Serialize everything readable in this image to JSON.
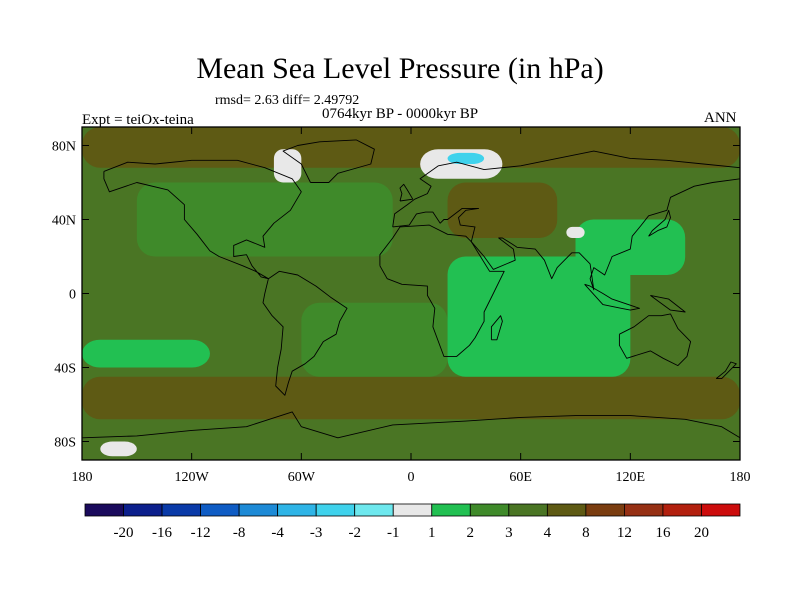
{
  "chart_data": {
    "type": "heatmap",
    "title": "Mean Sea Level Pressure (in hPa)",
    "stats_text": "rmsd= 2.63 diff= 2.49792",
    "period_text": "0764kyr BP - 0000kyr BP",
    "experiment_text": "Expt = teiOx-teina",
    "season": "ANN",
    "x_ticks": [
      "180",
      "120W",
      "60W",
      "0",
      "60E",
      "120E",
      "180"
    ],
    "x_tick_values": [
      -180,
      -120,
      -60,
      0,
      60,
      120,
      180
    ],
    "y_ticks": [
      "80N",
      "40N",
      "0",
      "40S",
      "80S"
    ],
    "y_tick_values": [
      80,
      40,
      0,
      -40,
      -80
    ],
    "xlim": [
      -180,
      180
    ],
    "ylim": [
      -90,
      90
    ],
    "colorbar_labels": [
      "-20",
      "-16",
      "-12",
      "-8",
      "-4",
      "-3",
      "-2",
      "-1",
      "1",
      "2",
      "3",
      "4",
      "8",
      "12",
      "16",
      "20"
    ],
    "colorbar_colors": [
      "#1a0a5c",
      "#0c1f8c",
      "#0a3aa8",
      "#0f5cc4",
      "#1d8ad6",
      "#2eb4e6",
      "#3fd2ec",
      "#6ee8ee",
      "#e8e8e8",
      "#22c052",
      "#3f8a2a",
      "#4a7524",
      "#5e5a14",
      "#7a3d10",
      "#963014",
      "#b2200e",
      "#cc0c0c"
    ],
    "regions": [
      {
        "name": "background",
        "color": "#4a7524",
        "lon": [
          -180,
          180
        ],
        "lat": [
          -90,
          90
        ]
      },
      {
        "name": "arctic-brown-band",
        "color": "#5e5a14",
        "lon": [
          -180,
          180
        ],
        "lat": [
          68,
          90
        ]
      },
      {
        "name": "southern-brown-band",
        "color": "#5e5a14",
        "lon": [
          -180,
          180
        ],
        "lat": [
          -68,
          -45
        ]
      },
      {
        "name": "north-atlantic-green",
        "color": "#3f8a2a",
        "lon": [
          -150,
          -10
        ],
        "lat": [
          20,
          60
        ]
      },
      {
        "name": "south-atlantic-green",
        "color": "#3f8a2a",
        "lon": [
          -60,
          20
        ],
        "lat": [
          -45,
          -5
        ]
      },
      {
        "name": "indian-ocean-bright",
        "color": "#22c052",
        "lon": [
          20,
          120
        ],
        "lat": [
          -45,
          20
        ]
      },
      {
        "name": "east-asia-bright",
        "color": "#22c052",
        "lon": [
          90,
          150
        ],
        "lat": [
          10,
          40
        ]
      },
      {
        "name": "south-pacific-bright",
        "color": "#22c052",
        "lon": [
          -180,
          -110
        ],
        "lat": [
          -40,
          -25
        ]
      },
      {
        "name": "eurasia-brown",
        "color": "#5e5a14",
        "lon": [
          20,
          80
        ],
        "lat": [
          30,
          60
        ]
      },
      {
        "name": "greenland-ice",
        "color": "#e8e8e8",
        "lon": [
          -75,
          -60
        ],
        "lat": [
          60,
          78
        ]
      },
      {
        "name": "scandinavia-ice",
        "color": "#e8e8e8",
        "lon": [
          5,
          50
        ],
        "lat": [
          62,
          78
        ]
      },
      {
        "name": "barents-cyan",
        "color": "#3fd2ec",
        "lon": [
          20,
          40
        ],
        "lat": [
          70,
          76
        ]
      },
      {
        "name": "tibet-ice",
        "color": "#e8e8e8",
        "lon": [
          85,
          95
        ],
        "lat": [
          30,
          36
        ]
      },
      {
        "name": "antarctic-ice",
        "color": "#e8e8e8",
        "lon": [
          -170,
          -150
        ],
        "lat": [
          -88,
          -80
        ]
      }
    ]
  }
}
